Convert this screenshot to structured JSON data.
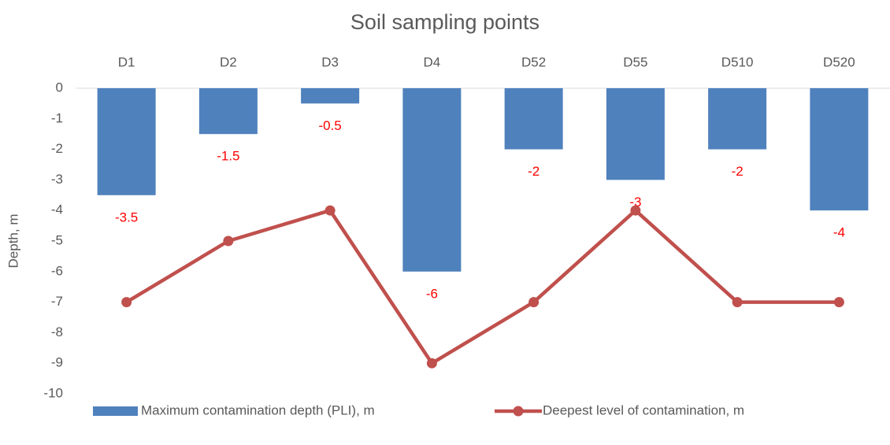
{
  "chart_data": {
    "type": "combo",
    "title": "Soil sampling points",
    "y_label": "Depth, m",
    "categories": [
      "D1",
      "D2",
      "D3",
      "D4",
      "D52",
      "D55",
      "D510",
      "D520"
    ],
    "series": [
      {
        "name": "Maximum contamination depth (PLI), m",
        "type": "bar",
        "color": "#4f81bd",
        "label_color": "#ff0000",
        "values": [
          -3.5,
          -1.5,
          -0.5,
          -6,
          -2,
          -3,
          -2,
          -4
        ]
      },
      {
        "name": "Deepest level of contamination, m",
        "type": "line",
        "color": "#c0504d",
        "values": [
          -7,
          -5,
          -4,
          -9,
          -7,
          -4,
          -7,
          -7
        ]
      }
    ],
    "ylim": [
      0,
      -10
    ],
    "yticks": [
      0,
      -1,
      -2,
      -3,
      -4,
      -5,
      -6,
      -7,
      -8,
      -9,
      -10
    ],
    "grid": false,
    "legend": "bottom"
  }
}
